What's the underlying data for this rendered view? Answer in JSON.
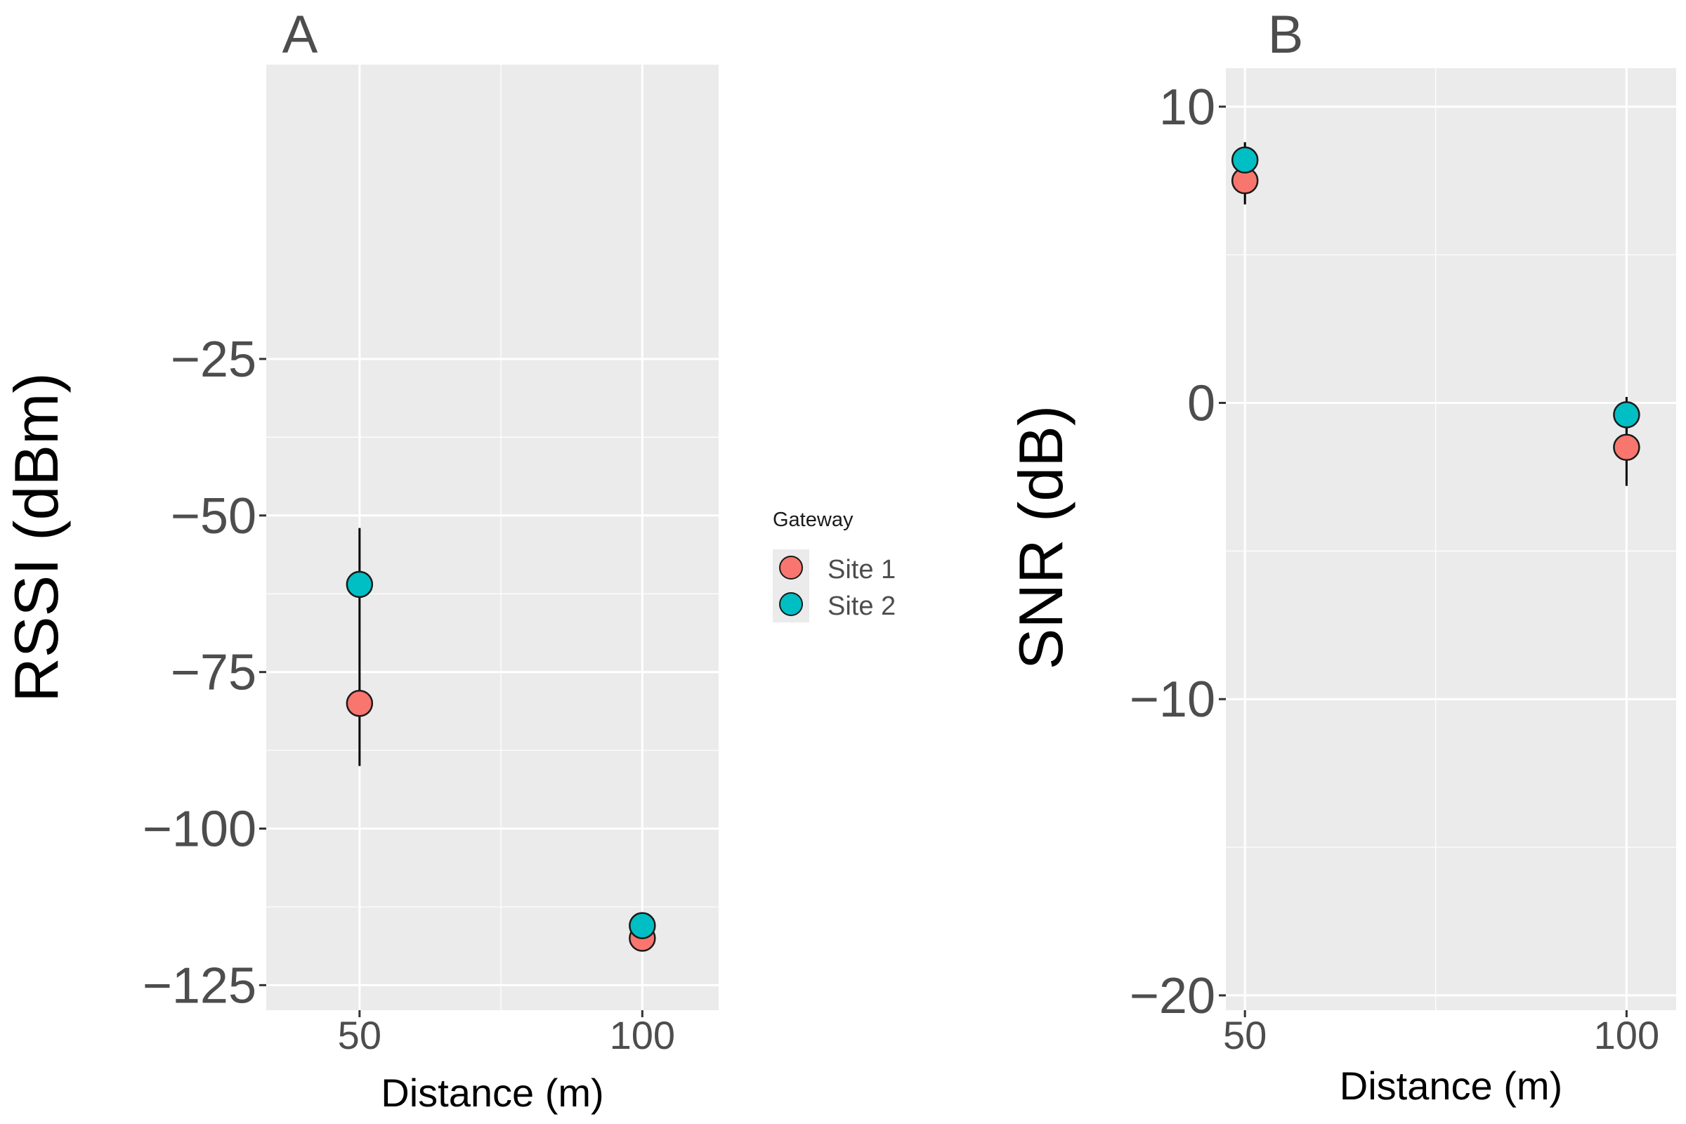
{
  "colors": {
    "site1": "#f8766d",
    "site2": "#00bfc4",
    "panel": "#ebebeb",
    "grid": "#ffffff",
    "text": "#4d4d4d",
    "title": "#000000"
  },
  "legend": {
    "title": "Gateway",
    "items": [
      {
        "label": "Site 1",
        "color": "#f8766d"
      },
      {
        "label": "Site 2",
        "color": "#00bfc4"
      }
    ]
  },
  "chart_data": [
    {
      "type": "scatter",
      "panel_label": "A",
      "xlabel": "Distance (m)",
      "ylabel": "RSSI (dBm)",
      "xlim": [
        33.5,
        113.5
      ],
      "ylim": [
        -129,
        22
      ],
      "xticks": [
        50,
        100
      ],
      "xtick_labels": [
        "50",
        "100"
      ],
      "yticks": [
        -25,
        -50,
        -75,
        -100,
        -125
      ],
      "ytick_labels": [
        "−25",
        "−50",
        "−75",
        "−100",
        "−125"
      ],
      "series": [
        {
          "name": "Site 1",
          "color": "#f8766d",
          "points": [
            {
              "x": 50,
              "y": -80,
              "ymin": -90,
              "ymax": -69
            },
            {
              "x": 100,
              "y": -117.5,
              "ymin": -119,
              "ymax": -116
            }
          ]
        },
        {
          "name": "Site 2",
          "color": "#00bfc4",
          "points": [
            {
              "x": 50,
              "y": -61,
              "ymin": -69,
              "ymax": -52
            },
            {
              "x": 100,
              "y": -115.5,
              "ymin": -117,
              "ymax": -114
            }
          ]
        }
      ]
    },
    {
      "type": "scatter",
      "panel_label": "B",
      "xlabel": "Distance (m)",
      "ylabel": "SNR (dB)",
      "xlim": [
        47.5,
        106.5
      ],
      "ylim": [
        -20.5,
        11.3
      ],
      "xticks": [
        50,
        100
      ],
      "xtick_labels": [
        "50",
        "100"
      ],
      "yticks": [
        10,
        0,
        -10,
        -20
      ],
      "ytick_labels": [
        "10",
        "0",
        "−10",
        "−20"
      ],
      "series": [
        {
          "name": "Site 1",
          "color": "#f8766d",
          "points": [
            {
              "x": 50,
              "y": 7.5,
              "ymin": 6.7,
              "ymax": 8.2
            },
            {
              "x": 100,
              "y": -1.5,
              "ymin": -2.8,
              "ymax": -0.4
            }
          ]
        },
        {
          "name": "Site 2",
          "color": "#00bfc4",
          "points": [
            {
              "x": 50,
              "y": 8.2,
              "ymin": 7.6,
              "ymax": 8.8
            },
            {
              "x": 100,
              "y": -0.4,
              "ymin": -1.0,
              "ymax": 0.2
            }
          ]
        }
      ]
    }
  ]
}
